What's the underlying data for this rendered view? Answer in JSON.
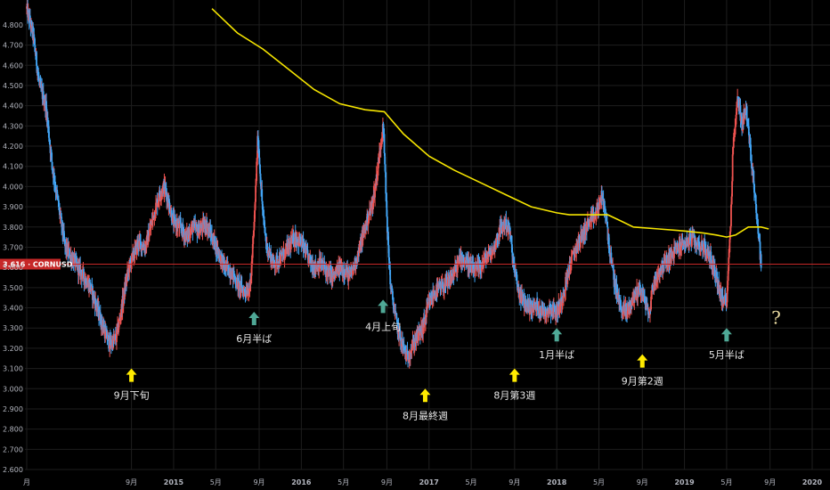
{
  "chart_data": {
    "type": "candlestick",
    "symbol": "CORNUSD",
    "current_price": "3.616",
    "y_ticks": [
      "4.800",
      "4.700",
      "4.600",
      "4.500",
      "4.400",
      "4.300",
      "4.200",
      "4.100",
      "4.000",
      "3.900",
      "3.800",
      "3.700",
      "3.600",
      "3.500",
      "3.400",
      "3.300",
      "3.200",
      "3.100",
      "3.000",
      "2.900",
      "2.800",
      "2.700",
      "2.600"
    ],
    "ylim": [
      2.6,
      4.87
    ],
    "x_ticks": [
      {
        "label": "月",
        "t": -0.15,
        "year": false
      },
      {
        "label": "9月",
        "t": 0.67,
        "year": false
      },
      {
        "label": "2015",
        "t": 1.0,
        "year": true
      },
      {
        "label": "5月",
        "t": 1.33,
        "year": false
      },
      {
        "label": "9月",
        "t": 1.67,
        "year": false
      },
      {
        "label": "2016",
        "t": 2.0,
        "year": true
      },
      {
        "label": "5月",
        "t": 2.33,
        "year": false
      },
      {
        "label": "9月",
        "t": 2.67,
        "year": false
      },
      {
        "label": "2017",
        "t": 3.0,
        "year": true
      },
      {
        "label": "5月",
        "t": 3.33,
        "year": false
      },
      {
        "label": "9月",
        "t": 3.67,
        "year": false
      },
      {
        "label": "2018",
        "t": 4.0,
        "year": true
      },
      {
        "label": "5月",
        "t": 4.33,
        "year": false
      },
      {
        "label": "9月",
        "t": 4.67,
        "year": false
      },
      {
        "label": "2019",
        "t": 5.0,
        "year": true
      },
      {
        "label": "5月",
        "t": 5.33,
        "year": false
      },
      {
        "label": "9月",
        "t": 5.67,
        "year": false
      },
      {
        "label": "2020",
        "t": 6.0,
        "year": true
      }
    ],
    "price_path": [
      [
        -0.15,
        4.88
      ],
      [
        -0.1,
        4.75
      ],
      [
        -0.05,
        4.5
      ],
      [
        0.0,
        4.4
      ],
      [
        0.05,
        4.1
      ],
      [
        0.1,
        3.9
      ],
      [
        0.15,
        3.7
      ],
      [
        0.2,
        3.65
      ],
      [
        0.25,
        3.6
      ],
      [
        0.3,
        3.55
      ],
      [
        0.35,
        3.5
      ],
      [
        0.4,
        3.4
      ],
      [
        0.45,
        3.3
      ],
      [
        0.5,
        3.22
      ],
      [
        0.55,
        3.25
      ],
      [
        0.58,
        3.35
      ],
      [
        0.62,
        3.5
      ],
      [
        0.65,
        3.6
      ],
      [
        0.68,
        3.65
      ],
      [
        0.72,
        3.72
      ],
      [
        0.78,
        3.7
      ],
      [
        0.82,
        3.8
      ],
      [
        0.86,
        3.9
      ],
      [
        0.9,
        3.98
      ],
      [
        0.93,
        4.0
      ],
      [
        0.97,
        3.9
      ],
      [
        1.0,
        3.82
      ],
      [
        1.05,
        3.8
      ],
      [
        1.1,
        3.75
      ],
      [
        1.15,
        3.8
      ],
      [
        1.2,
        3.78
      ],
      [
        1.25,
        3.82
      ],
      [
        1.3,
        3.75
      ],
      [
        1.35,
        3.68
      ],
      [
        1.4,
        3.6
      ],
      [
        1.45,
        3.58
      ],
      [
        1.5,
        3.52
      ],
      [
        1.55,
        3.48
      ],
      [
        1.6,
        3.5
      ],
      [
        1.63,
        3.8
      ],
      [
        1.66,
        4.25
      ],
      [
        1.68,
        4.05
      ],
      [
        1.7,
        3.85
      ],
      [
        1.73,
        3.7
      ],
      [
        1.78,
        3.62
      ],
      [
        1.85,
        3.65
      ],
      [
        1.9,
        3.7
      ],
      [
        1.95,
        3.75
      ],
      [
        2.0,
        3.72
      ],
      [
        2.05,
        3.65
      ],
      [
        2.1,
        3.6
      ],
      [
        2.15,
        3.62
      ],
      [
        2.2,
        3.58
      ],
      [
        2.25,
        3.55
      ],
      [
        2.3,
        3.6
      ],
      [
        2.35,
        3.58
      ],
      [
        2.38,
        3.55
      ],
      [
        2.42,
        3.62
      ],
      [
        2.46,
        3.7
      ],
      [
        2.5,
        3.8
      ],
      [
        2.55,
        3.9
      ],
      [
        2.58,
        4.0
      ],
      [
        2.62,
        4.2
      ],
      [
        2.64,
        4.33
      ],
      [
        2.66,
        4.0
      ],
      [
        2.68,
        3.7
      ],
      [
        2.7,
        3.5
      ],
      [
        2.73,
        3.38
      ],
      [
        2.76,
        3.28
      ],
      [
        2.8,
        3.2
      ],
      [
        2.83,
        3.15
      ],
      [
        2.86,
        3.2
      ],
      [
        2.9,
        3.25
      ],
      [
        2.95,
        3.3
      ],
      [
        3.0,
        3.42
      ],
      [
        3.05,
        3.48
      ],
      [
        3.1,
        3.5
      ],
      [
        3.15,
        3.52
      ],
      [
        3.2,
        3.58
      ],
      [
        3.25,
        3.65
      ],
      [
        3.3,
        3.62
      ],
      [
        3.35,
        3.58
      ],
      [
        3.4,
        3.6
      ],
      [
        3.45,
        3.65
      ],
      [
        3.5,
        3.68
      ],
      [
        3.55,
        3.78
      ],
      [
        3.6,
        3.82
      ],
      [
        3.63,
        3.78
      ],
      [
        3.66,
        3.62
      ],
      [
        3.7,
        3.48
      ],
      [
        3.75,
        3.42
      ],
      [
        3.8,
        3.4
      ],
      [
        3.85,
        3.41
      ],
      [
        3.9,
        3.38
      ],
      [
        3.95,
        3.4
      ],
      [
        4.0,
        3.38
      ],
      [
        4.03,
        3.42
      ],
      [
        4.06,
        3.5
      ],
      [
        4.1,
        3.6
      ],
      [
        4.15,
        3.7
      ],
      [
        4.2,
        3.76
      ],
      [
        4.25,
        3.82
      ],
      [
        4.3,
        3.85
      ],
      [
        4.35,
        3.95
      ],
      [
        4.38,
        3.88
      ],
      [
        4.42,
        3.65
      ],
      [
        4.46,
        3.5
      ],
      [
        4.5,
        3.4
      ],
      [
        4.55,
        3.38
      ],
      [
        4.6,
        3.45
      ],
      [
        4.65,
        3.5
      ],
      [
        4.7,
        3.42
      ],
      [
        4.72,
        3.35
      ],
      [
        4.75,
        3.5
      ],
      [
        4.8,
        3.58
      ],
      [
        4.85,
        3.62
      ],
      [
        4.9,
        3.66
      ],
      [
        4.95,
        3.7
      ],
      [
        5.0,
        3.72
      ],
      [
        5.05,
        3.74
      ],
      [
        5.1,
        3.72
      ],
      [
        5.15,
        3.7
      ],
      [
        5.2,
        3.65
      ],
      [
        5.25,
        3.55
      ],
      [
        5.3,
        3.42
      ],
      [
        5.33,
        3.45
      ],
      [
        5.36,
        3.8
      ],
      [
        5.38,
        4.2
      ],
      [
        5.42,
        4.45
      ],
      [
        5.45,
        4.3
      ],
      [
        5.48,
        4.4
      ],
      [
        5.52,
        4.15
      ],
      [
        5.55,
        3.98
      ],
      [
        5.58,
        3.75
      ],
      [
        5.6,
        3.62
      ]
    ],
    "ma_path": [
      [
        1.3,
        4.88
      ],
      [
        1.5,
        4.76
      ],
      [
        1.7,
        4.68
      ],
      [
        1.9,
        4.58
      ],
      [
        2.1,
        4.48
      ],
      [
        2.3,
        4.41
      ],
      [
        2.5,
        4.38
      ],
      [
        2.65,
        4.37
      ],
      [
        2.8,
        4.26
      ],
      [
        3.0,
        4.15
      ],
      [
        3.2,
        4.08
      ],
      [
        3.4,
        4.02
      ],
      [
        3.6,
        3.96
      ],
      [
        3.8,
        3.9
      ],
      [
        4.0,
        3.87
      ],
      [
        4.1,
        3.86
      ],
      [
        4.2,
        3.86
      ],
      [
        4.3,
        3.86
      ],
      [
        4.4,
        3.86
      ],
      [
        4.5,
        3.83
      ],
      [
        4.6,
        3.8
      ],
      [
        4.8,
        3.79
      ],
      [
        5.0,
        3.78
      ],
      [
        5.15,
        3.77
      ],
      [
        5.25,
        3.76
      ],
      [
        5.33,
        3.75
      ],
      [
        5.4,
        3.76
      ],
      [
        5.5,
        3.8
      ],
      [
        5.6,
        3.8
      ],
      [
        5.66,
        3.79
      ]
    ],
    "annotations": [
      {
        "type": "yellow",
        "t": 0.67,
        "price": 3.1,
        "label": "9月下旬"
      },
      {
        "type": "teal",
        "t": 1.63,
        "price": 3.38,
        "label": "6月半ば"
      },
      {
        "type": "teal",
        "t": 2.64,
        "price": 3.44,
        "label": "4月上旬"
      },
      {
        "type": "yellow",
        "t": 2.97,
        "price": 3.0,
        "label": "8月最終週"
      },
      {
        "type": "yellow",
        "t": 3.67,
        "price": 3.1,
        "label": "8月第3週"
      },
      {
        "type": "teal",
        "t": 4.0,
        "price": 3.3,
        "label": "1月半ば"
      },
      {
        "type": "yellow",
        "t": 4.67,
        "price": 3.17,
        "label": "9月第2週"
      },
      {
        "type": "teal",
        "t": 5.33,
        "price": 3.3,
        "label": "5月半ば"
      }
    ],
    "question_mark": "?",
    "colors": {
      "up": "#ef5350",
      "down": "#42a5f5",
      "ma": "#f5e400",
      "price_line": "#c62828",
      "yellow_arrow": "#ffeb00",
      "teal_arrow": "#4fa896",
      "grid": "#1e1e1e"
    }
  }
}
